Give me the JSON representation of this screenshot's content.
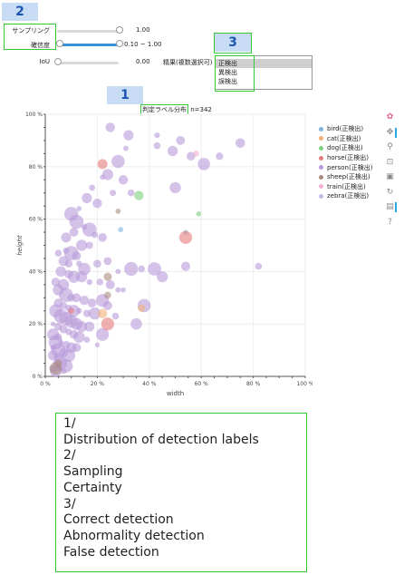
{
  "badges": {
    "one": "1",
    "two": "2",
    "three": "3"
  },
  "controls": {
    "sampling": {
      "label": "サンプリング",
      "value": "1.00",
      "level": 1.0
    },
    "certainty": {
      "label": "確信度",
      "value": "0.10 ~ 1.00",
      "range": [
        0.1,
        1.0
      ]
    },
    "iou": {
      "label": "IoU",
      "value": "0.00",
      "level": 0.0
    },
    "result": {
      "label": "精果(複数選択可)",
      "options": [
        "正検出",
        "異検出",
        "誤検出"
      ],
      "selected": "正検出"
    }
  },
  "plot": {
    "title_highlight": "判定ラベル分布",
    "title_suffix": " n=342",
    "xlabel": "width",
    "ylabel": "height",
    "xticks": [
      "0 %",
      "20 %",
      "40 %",
      "60 %",
      "80 %",
      "100 %"
    ],
    "yticks": [
      "0 %",
      "20 %",
      "40 %",
      "60 %",
      "80 %",
      "100 %"
    ]
  },
  "legend": [
    {
      "name": "bird(正検出)",
      "color": "#7fb2de"
    },
    {
      "name": "cat(正検出)",
      "color": "#f2b07a"
    },
    {
      "name": "dog(正検出)",
      "color": "#7dcf7d"
    },
    {
      "name": "horse(正検出)",
      "color": "#e77c7c"
    },
    {
      "name": "person(正検出)",
      "color": "#b89ad8"
    },
    {
      "name": "sheep(正検出)",
      "color": "#a98a7f"
    },
    {
      "name": "train(正検出)",
      "color": "#f2aed3"
    },
    {
      "name": "zebra(正検出)",
      "color": "#c3bde6"
    }
  ],
  "toolbar": [
    "bokeh-logo-icon",
    "pan-icon",
    "wheel-zoom-icon",
    "box-zoom-icon",
    "save-icon",
    "reset-icon",
    "hover-icon",
    "help-icon"
  ],
  "caption": [
    "1/",
    "Distribution of detection labels",
    "2/",
    "Sampling",
    "Certainty",
    "3/",
    "Correct detection",
    "Abnormality detection",
    "False detection"
  ],
  "chart_data": {
    "type": "scatter",
    "xlabel": "width",
    "ylabel": "height",
    "xlim": [
      0,
      100
    ],
    "ylim": [
      0,
      100
    ],
    "series": [
      {
        "name": "person(正検出)",
        "color": "#b89ad8",
        "points": [
          [
            25,
            95
          ],
          [
            32,
            92
          ],
          [
            43,
            92
          ],
          [
            43,
            88
          ],
          [
            52,
            90
          ],
          [
            75,
            89
          ],
          [
            31,
            87
          ],
          [
            28,
            82
          ],
          [
            49,
            86
          ],
          [
            56,
            84
          ],
          [
            67,
            84
          ],
          [
            61,
            81
          ],
          [
            24,
            77
          ],
          [
            22,
            76
          ],
          [
            30,
            75
          ],
          [
            33,
            70
          ],
          [
            50,
            72
          ],
          [
            18,
            72
          ],
          [
            16,
            68
          ],
          [
            20,
            66
          ],
          [
            26,
            70
          ],
          [
            13,
            64
          ],
          [
            10,
            62
          ],
          [
            12,
            59
          ],
          [
            15,
            57
          ],
          [
            11,
            55
          ],
          [
            17,
            56
          ],
          [
            19,
            54
          ],
          [
            22,
            53
          ],
          [
            8,
            53
          ],
          [
            14,
            50
          ],
          [
            17,
            50
          ],
          [
            8,
            48
          ],
          [
            10,
            47
          ],
          [
            12,
            46
          ],
          [
            5,
            47
          ],
          [
            7,
            44
          ],
          [
            9,
            43
          ],
          [
            13,
            43
          ],
          [
            15,
            41
          ],
          [
            20,
            43
          ],
          [
            24,
            44
          ],
          [
            28,
            40
          ],
          [
            33,
            41
          ],
          [
            37,
            41
          ],
          [
            42,
            41
          ],
          [
            54,
            42
          ],
          [
            82,
            42
          ],
          [
            6,
            40
          ],
          [
            9,
            39
          ],
          [
            11,
            38
          ],
          [
            14,
            38
          ],
          [
            17,
            36
          ],
          [
            21,
            36
          ],
          [
            25,
            35
          ],
          [
            28,
            33
          ],
          [
            30,
            33
          ],
          [
            4,
            36
          ],
          [
            7,
            35
          ],
          [
            5,
            33
          ],
          [
            8,
            31
          ],
          [
            10,
            30
          ],
          [
            12,
            30
          ],
          [
            15,
            29
          ],
          [
            18,
            28
          ],
          [
            22,
            29
          ],
          [
            24,
            27
          ],
          [
            5,
            28
          ],
          [
            7,
            27
          ],
          [
            9,
            26
          ],
          [
            11,
            25
          ],
          [
            13,
            25
          ],
          [
            16,
            24
          ],
          [
            19,
            24
          ],
          [
            4,
            25
          ],
          [
            6,
            23
          ],
          [
            8,
            22
          ],
          [
            10,
            21
          ],
          [
            12,
            20
          ],
          [
            14,
            19
          ],
          [
            17,
            19
          ],
          [
            3,
            20
          ],
          [
            5,
            19
          ],
          [
            7,
            18
          ],
          [
            9,
            17
          ],
          [
            11,
            16
          ],
          [
            13,
            15
          ],
          [
            3,
            16
          ],
          [
            5,
            15
          ],
          [
            4,
            13
          ],
          [
            6,
            13
          ],
          [
            8,
            12
          ],
          [
            10,
            11
          ],
          [
            12,
            11
          ],
          [
            3,
            11
          ],
          [
            5,
            10
          ],
          [
            7,
            9
          ],
          [
            9,
            8
          ],
          [
            3,
            8
          ],
          [
            5,
            7
          ],
          [
            4,
            5
          ],
          [
            6,
            5
          ],
          [
            8,
            4
          ],
          [
            3,
            3
          ],
          [
            5,
            3
          ],
          [
            7,
            2
          ],
          [
            4,
            2
          ],
          [
            35,
            20
          ],
          [
            45,
            38
          ],
          [
            38,
            27
          ],
          [
            27,
            23
          ],
          [
            22,
            16
          ],
          [
            16,
            14
          ],
          [
            20,
            12
          ]
        ]
      },
      {
        "name": "bird(正検出)",
        "color": "#7fb2de",
        "points": [
          [
            29,
            56
          ],
          [
            54,
            55
          ]
        ]
      },
      {
        "name": "horse(正検出)",
        "color": "#e77c7c",
        "points": [
          [
            22,
            81
          ],
          [
            54,
            53
          ],
          [
            24,
            20
          ],
          [
            10,
            25
          ]
        ]
      },
      {
        "name": "dog(正検出)",
        "color": "#7dcf7d",
        "points": [
          [
            36,
            69
          ],
          [
            59,
            62
          ]
        ]
      },
      {
        "name": "cat(正検出)",
        "color": "#f2b07a",
        "points": [
          [
            37,
            26
          ],
          [
            22,
            24
          ]
        ]
      },
      {
        "name": "sheep(正検出)",
        "color": "#a98a7f",
        "points": [
          [
            28,
            63
          ],
          [
            24,
            38
          ],
          [
            24,
            31
          ],
          [
            5,
            5
          ],
          [
            4,
            3
          ]
        ]
      },
      {
        "name": "train(正検出)",
        "color": "#f2aed3",
        "points": [
          [
            58,
            85
          ]
        ]
      }
    ]
  }
}
